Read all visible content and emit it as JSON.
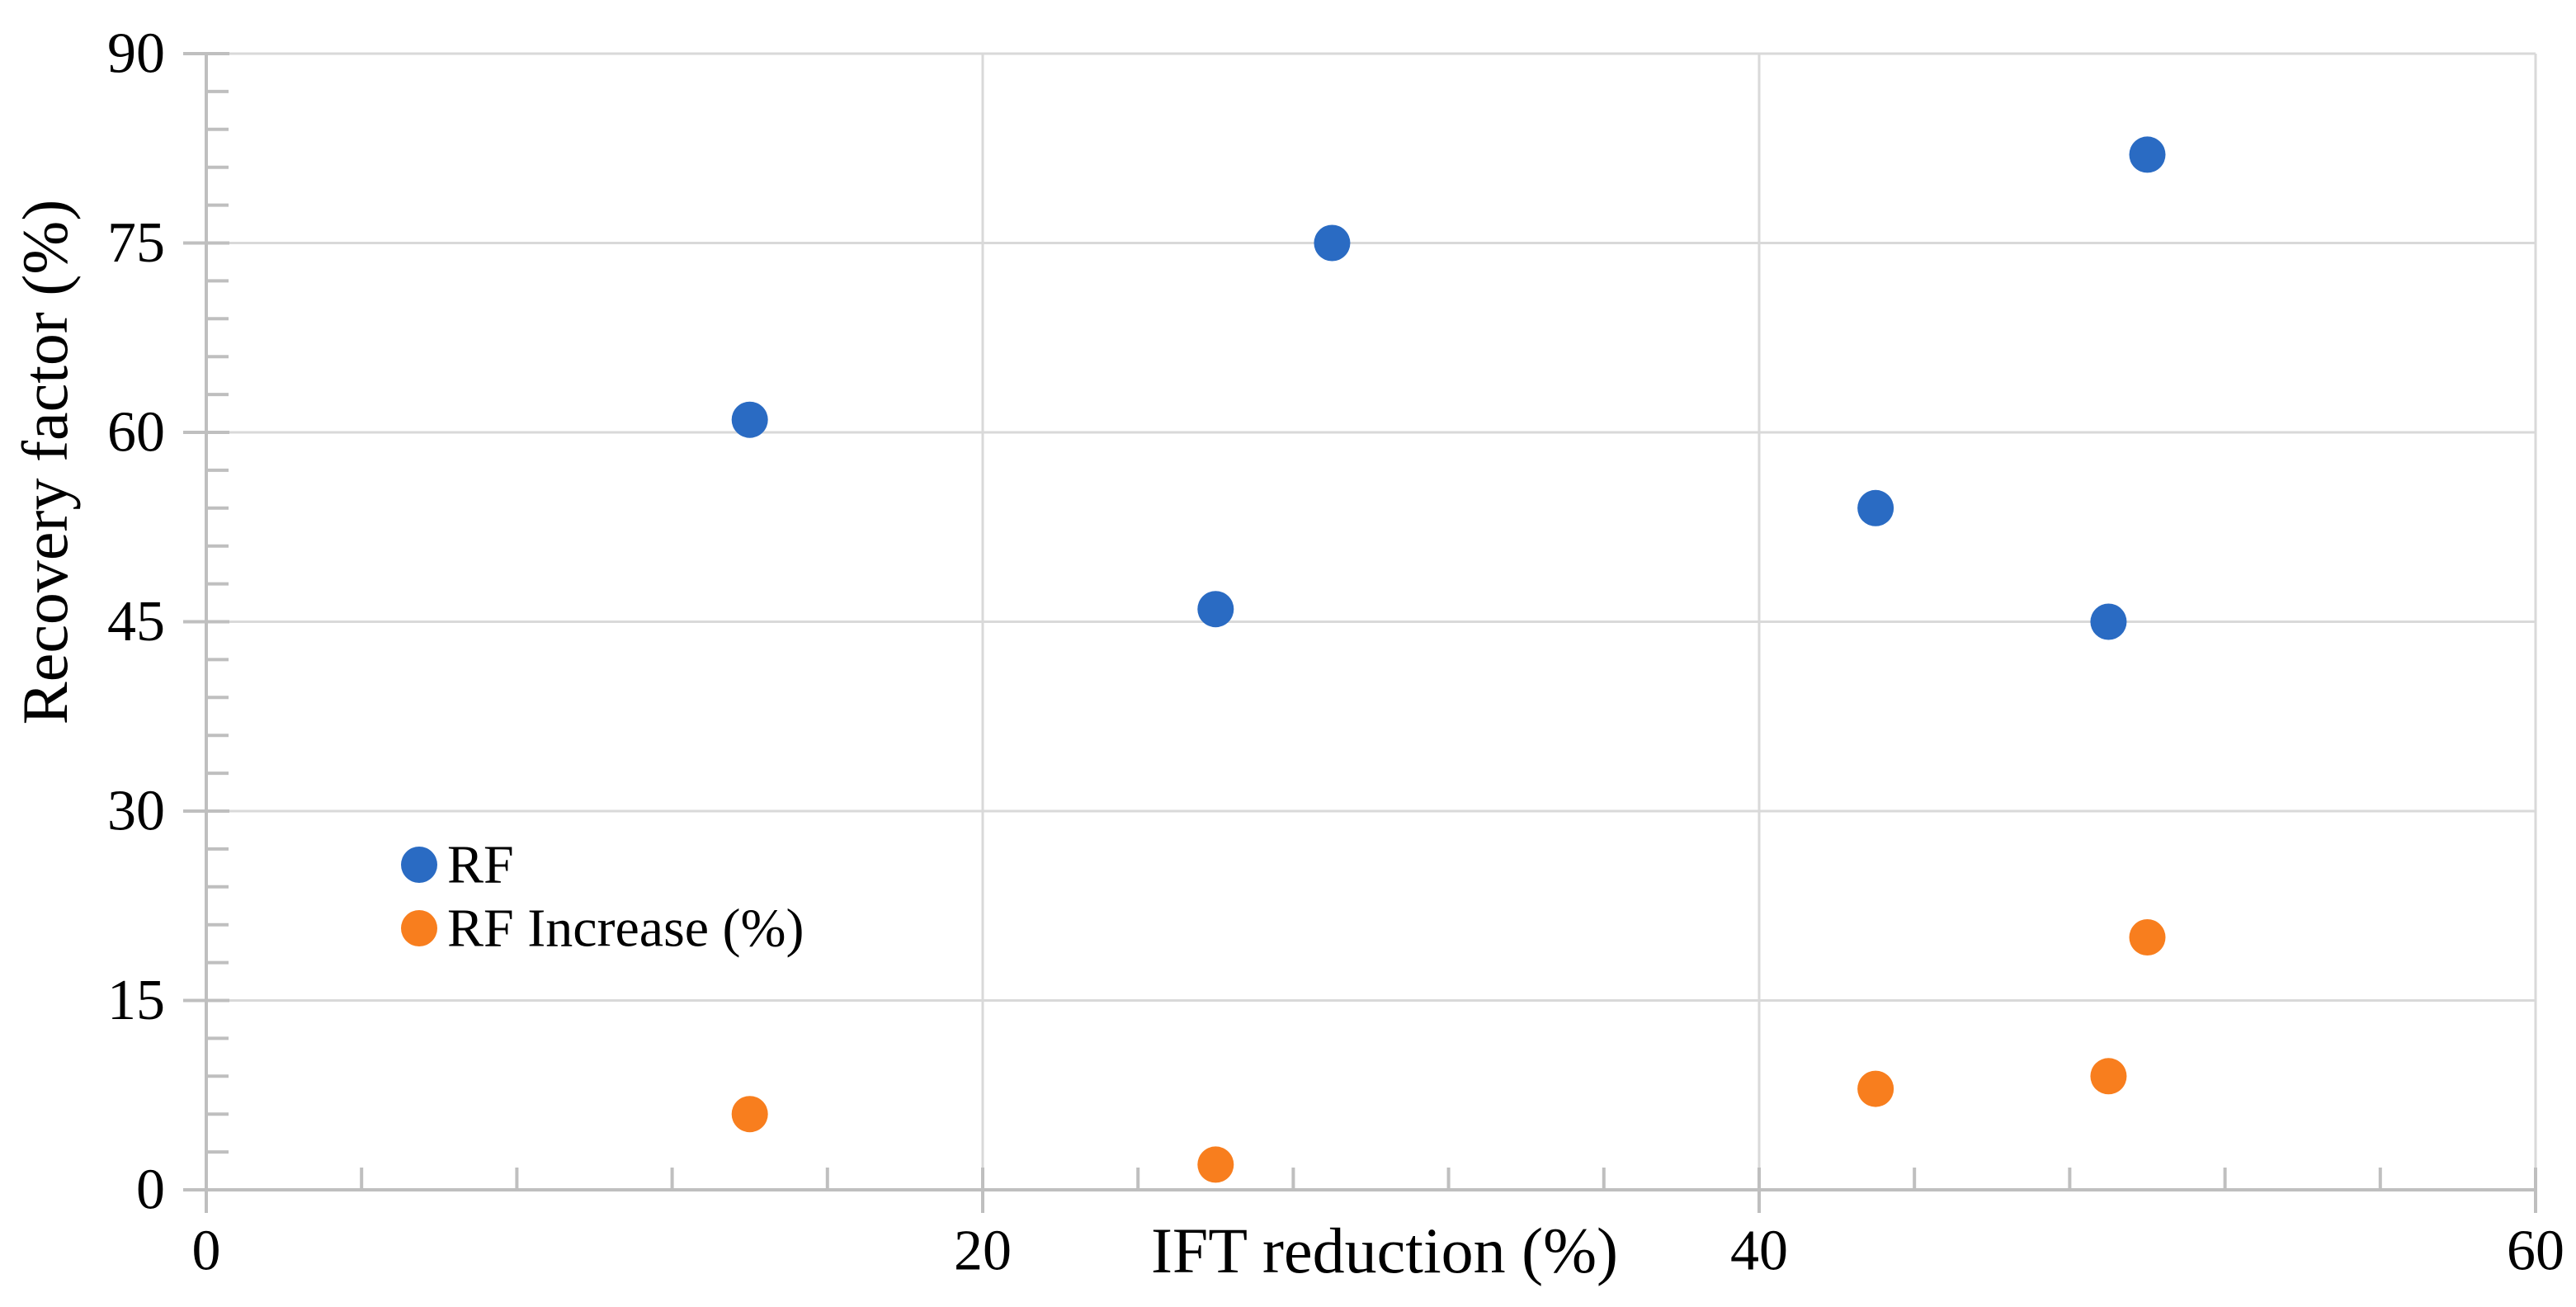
{
  "chart_data": {
    "type": "scatter",
    "title": "",
    "xlabel": "IFT reduction (%)",
    "ylabel": "Recovery factor (%)",
    "xlim": [
      0,
      60
    ],
    "ylim": [
      0,
      90
    ],
    "x_ticks": [
      0,
      20,
      40,
      60
    ],
    "y_ticks": [
      0,
      15,
      30,
      45,
      60,
      75,
      90
    ],
    "x_minor_unit": 4,
    "y_minor_unit": 3,
    "grid": true,
    "legend": {
      "position": "inside-left",
      "entries": [
        {
          "label": "RF",
          "color": "#2A6BC3"
        },
        {
          "label": "RF Increase (%)",
          "color": "#F87E1E"
        }
      ]
    },
    "series": [
      {
        "name": "RF",
        "color": "#2A6BC3",
        "points": [
          [
            14,
            61
          ],
          [
            26,
            46
          ],
          [
            29,
            75
          ],
          [
            43,
            54
          ],
          [
            49,
            45
          ],
          [
            50,
            82
          ]
        ]
      },
      {
        "name": "RF Increase (%)",
        "color": "#F87E1E",
        "points": [
          [
            14,
            6
          ],
          [
            26,
            2
          ],
          [
            43,
            8
          ],
          [
            49,
            9
          ],
          [
            50,
            20
          ]
        ]
      }
    ],
    "styles": {
      "gridline_color": "#D9D9D9",
      "axis_color": "#BFBFBF",
      "text_color": "#000000",
      "marker_radius": 22
    }
  }
}
